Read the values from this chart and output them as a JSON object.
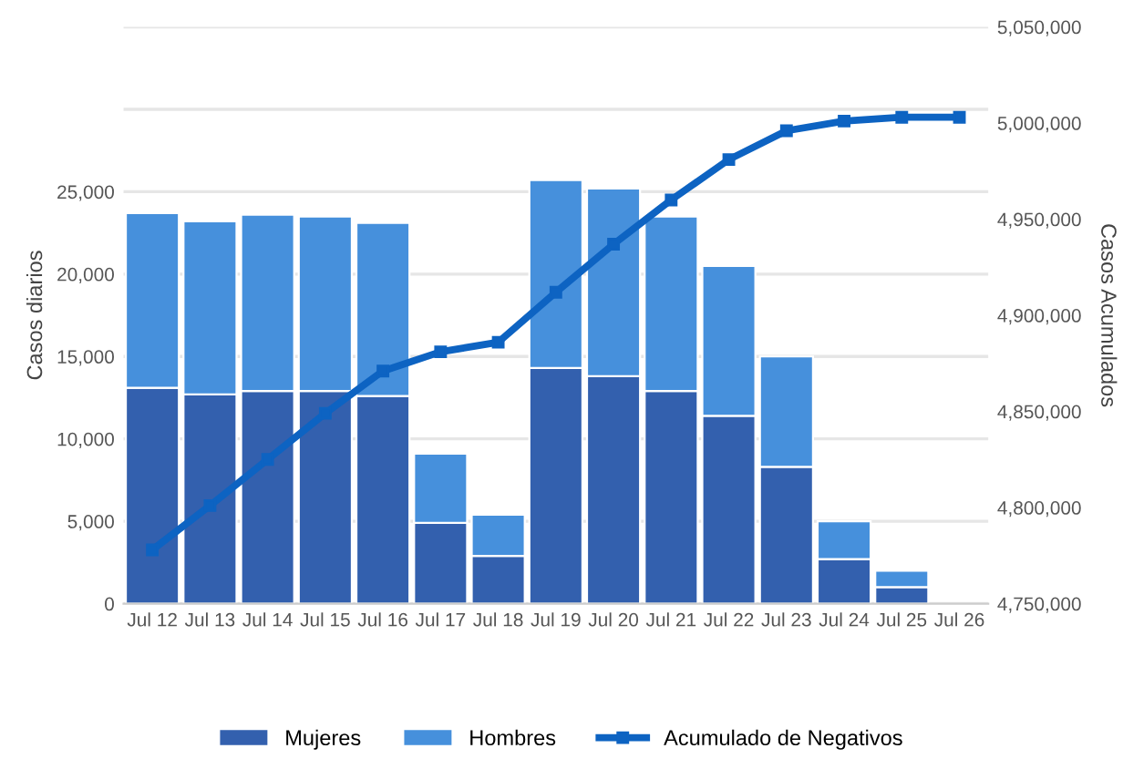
{
  "chart_data": {
    "type": "bar",
    "stacked": true,
    "categories": [
      "Jul 12",
      "Jul 13",
      "Jul 14",
      "Jul 15",
      "Jul 16",
      "Jul 17",
      "Jul 18",
      "Jul 19",
      "Jul 20",
      "Jul 21",
      "Jul 22",
      "Jul 23",
      "Jul 24",
      "Jul 25",
      "Jul 26"
    ],
    "series": [
      {
        "name": "Mujeres",
        "color": "#3360ae",
        "values": [
          13100,
          12700,
          12900,
          12900,
          12600,
          4900,
          2900,
          14300,
          13800,
          12900,
          11400,
          8300,
          2700,
          1000,
          null
        ]
      },
      {
        "name": "Hombres",
        "color": "#4690dc",
        "values": [
          10600,
          10500,
          10700,
          10600,
          10500,
          4200,
          2500,
          11400,
          11400,
          10600,
          9100,
          6700,
          2300,
          1000,
          null
        ]
      },
      {
        "name": "Acumulado de Negativos",
        "type": "line",
        "axis": "y2",
        "color": "#0d63c2",
        "marker": "square",
        "values": [
          4778000,
          4801000,
          4825000,
          4849000,
          4871000,
          4881000,
          4886000,
          4912000,
          4937000,
          4960000,
          4981000,
          4996000,
          5001000,
          5003000,
          5003000
        ]
      }
    ],
    "ylabel": "Casos diarios",
    "y2label": "Casos Acumulados",
    "ylim": [
      0,
      35000
    ],
    "yticks": [
      {
        "value": 0,
        "label": "0"
      },
      {
        "value": 5000,
        "label": "5,000"
      },
      {
        "value": 10000,
        "label": "10,000"
      },
      {
        "value": 15000,
        "label": "15,000"
      },
      {
        "value": 20000,
        "label": "20,000"
      },
      {
        "value": 25000,
        "label": "25,000"
      },
      {
        "value": 30000,
        "label": null
      },
      {
        "value": 35000,
        "label": null
      }
    ],
    "y2lim": [
      4750000,
      5050000
    ],
    "y2ticks": [
      {
        "value": 4750000,
        "label": "4,750,000"
      },
      {
        "value": 4800000,
        "label": "4,800,000"
      },
      {
        "value": 4850000,
        "label": "4,850,000"
      },
      {
        "value": 4900000,
        "label": "4,900,000"
      },
      {
        "value": 4950000,
        "label": "4,950,000"
      },
      {
        "value": 5000000,
        "label": "5,000,000"
      },
      {
        "value": 5050000,
        "label": "5,050,000"
      }
    ],
    "grid": "y",
    "legend": "bottom"
  }
}
